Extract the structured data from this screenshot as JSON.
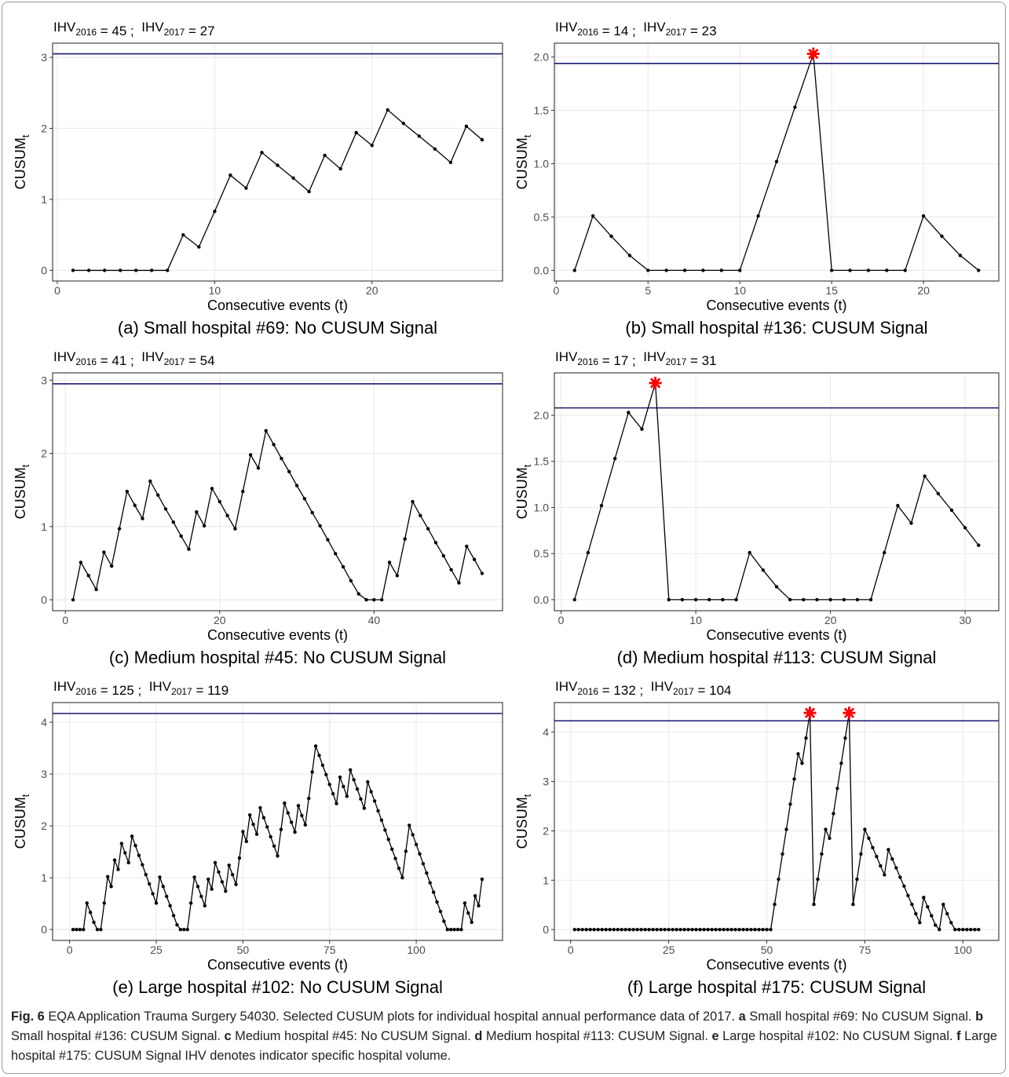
{
  "chart_data": [
    {
      "type": "line",
      "annotation": [
        {
          "label": "IHV",
          "sub": "2016",
          "text": " = 45 ;  "
        },
        {
          "label": "IHV",
          "sub": "2017",
          "text": " = 27"
        }
      ],
      "ylabel": {
        "text": "CUSUM",
        "sub": "t"
      },
      "xlabel": "Consecutive events (t)",
      "caption": "(a) Small hospital #69: No CUSUM Signal",
      "x": [
        1,
        2,
        3,
        4,
        5,
        6,
        7,
        8,
        9,
        10,
        11,
        12,
        13,
        14,
        15,
        16,
        17,
        18,
        19,
        20,
        21,
        22,
        23,
        24,
        25,
        26,
        27
      ],
      "values": [
        0,
        0,
        0,
        0,
        0,
        0,
        0,
        0.5,
        0.33,
        0.83,
        1.34,
        1.16,
        1.66,
        1.48,
        1.3,
        1.11,
        1.62,
        1.43,
        1.94,
        1.76,
        2.26,
        2.07,
        1.89,
        1.71,
        1.52,
        2.03,
        1.84
      ],
      "color": "#000000",
      "threshold": 3.05,
      "threshold_color": "#191970",
      "signal_x": [],
      "signal_color": "#ff0000",
      "xlim": [
        -0.3,
        28.3
      ],
      "xticks": [
        0,
        10,
        20
      ],
      "ylim": [
        -0.15,
        3.2
      ],
      "yticks": [
        0,
        1,
        2,
        3
      ],
      "grid": true
    },
    {
      "type": "line",
      "annotation": [
        {
          "label": "IHV",
          "sub": "2016",
          "text": " = 14 ;  "
        },
        {
          "label": "IHV",
          "sub": "2017",
          "text": " = 23"
        }
      ],
      "ylabel": {
        "text": "CUSUM",
        "sub": "t"
      },
      "xlabel": "Consecutive events (t)",
      "caption": "(b) Small hospital #136: CUSUM Signal",
      "x": [
        1,
        2,
        3,
        4,
        5,
        6,
        7,
        8,
        9,
        10,
        11,
        12,
        13,
        14,
        15,
        16,
        17,
        18,
        19,
        20,
        21,
        22,
        23
      ],
      "values": [
        0,
        0.51,
        0.32,
        0.14,
        0,
        0,
        0,
        0,
        0,
        0,
        0.51,
        1.02,
        1.53,
        2.03,
        0,
        0,
        0,
        0,
        0,
        0.51,
        0.32,
        0.14,
        0
      ],
      "color": "#000000",
      "threshold": 1.94,
      "threshold_color": "#191970",
      "signal_x": [
        14
      ],
      "signal_color": "#ff0000",
      "xlim": [
        -0.1,
        24.1
      ],
      "xticks": [
        0,
        5,
        10,
        15,
        20
      ],
      "ylim": [
        -0.1,
        2.13
      ],
      "yticks": [
        {
          "value": 0,
          "label": "0.0"
        },
        0.5,
        {
          "value": 1,
          "label": "1.0"
        },
        1.5,
        {
          "value": 2,
          "label": "2.0"
        }
      ],
      "grid": true
    },
    {
      "type": "line",
      "annotation": [
        {
          "label": "IHV",
          "sub": "2016",
          "text": " = 41 ;  "
        },
        {
          "label": "IHV",
          "sub": "2017",
          "text": " = 54"
        }
      ],
      "ylabel": {
        "text": "CUSUM",
        "sub": "t"
      },
      "xlabel": "Consecutive events (t)",
      "caption": "(c) Medium hospital #45: No CUSUM Signal",
      "x": [
        1,
        2,
        3,
        4,
        5,
        6,
        7,
        8,
        9,
        10,
        11,
        12,
        13,
        14,
        15,
        16,
        17,
        18,
        19,
        20,
        21,
        22,
        23,
        24,
        25,
        26,
        27,
        28,
        29,
        30,
        31,
        32,
        33,
        34,
        35,
        36,
        37,
        38,
        39,
        40,
        41,
        42,
        43,
        44,
        45,
        46,
        47,
        48,
        49,
        50,
        51,
        52,
        53,
        54
      ],
      "values": [
        0,
        0.51,
        0.33,
        0.14,
        0.65,
        0.46,
        0.97,
        1.48,
        1.29,
        1.11,
        1.62,
        1.43,
        1.24,
        1.06,
        0.87,
        0.69,
        1.2,
        1.01,
        1.52,
        1.34,
        1.15,
        0.97,
        1.48,
        1.98,
        1.8,
        2.31,
        2.12,
        1.93,
        1.75,
        1.56,
        1.38,
        1.19,
        1.01,
        0.82,
        0.63,
        0.45,
        0.26,
        0.08,
        0,
        0,
        0,
        0.51,
        0.33,
        0.83,
        1.34,
        1.15,
        0.97,
        0.78,
        0.6,
        0.41,
        0.23,
        0.73,
        0.55,
        0.36
      ],
      "color": "#000000",
      "threshold": 2.95,
      "threshold_color": "#191970",
      "signal_x": [],
      "signal_color": "#ff0000",
      "xlim": [
        -1.65,
        56.65
      ],
      "xticks": [
        0,
        20,
        40
      ],
      "ylim": [
        -0.15,
        3.1
      ],
      "yticks": [
        0,
        1,
        2,
        3
      ],
      "grid": true
    },
    {
      "type": "line",
      "annotation": [
        {
          "label": "IHV",
          "sub": "2016",
          "text": " = 17 ;  "
        },
        {
          "label": "IHV",
          "sub": "2017",
          "text": " = 31"
        }
      ],
      "ylabel": {
        "text": "CUSUM",
        "sub": "t"
      },
      "xlabel": "Consecutive events (t)",
      "caption": "(d) Medium hospital #113: CUSUM Signal",
      "x": [
        1,
        2,
        3,
        4,
        5,
        6,
        7,
        8,
        9,
        10,
        11,
        12,
        13,
        14,
        15,
        16,
        17,
        18,
        19,
        20,
        21,
        22,
        23,
        24,
        25,
        26,
        27,
        28,
        29,
        30,
        31
      ],
      "values": [
        0,
        0.51,
        1.02,
        1.53,
        2.03,
        1.85,
        2.35,
        0,
        0,
        0,
        0,
        0,
        0,
        0.51,
        0.32,
        0.14,
        0,
        0,
        0,
        0,
        0,
        0,
        0,
        0.51,
        1.02,
        0.83,
        1.34,
        1.15,
        0.97,
        0.78,
        0.59
      ],
      "color": "#000000",
      "threshold": 2.08,
      "threshold_color": "#191970",
      "signal_x": [
        7
      ],
      "signal_color": "#ff0000",
      "xlim": [
        -0.5,
        32.5
      ],
      "xticks": [
        0,
        10,
        20,
        30
      ],
      "ylim": [
        -0.12,
        2.46
      ],
      "yticks": [
        {
          "value": 0,
          "label": "0.0"
        },
        0.5,
        {
          "value": 1,
          "label": "1.0"
        },
        1.5,
        {
          "value": 2,
          "label": "2.0"
        }
      ],
      "grid": true
    },
    {
      "type": "line",
      "annotation": [
        {
          "label": "IHV",
          "sub": "2016",
          "text": " = 125 ;  "
        },
        {
          "label": "IHV",
          "sub": "2017",
          "text": " = 119"
        }
      ],
      "ylabel": {
        "text": "CUSUM",
        "sub": "t"
      },
      "xlabel": "Consecutive events (t)",
      "caption": "(e) Large hospital #102: No CUSUM Signal",
      "x": [
        1,
        2,
        3,
        4,
        5,
        6,
        7,
        8,
        9,
        10,
        11,
        12,
        13,
        14,
        15,
        16,
        17,
        18,
        19,
        20,
        21,
        22,
        23,
        24,
        25,
        26,
        27,
        28,
        29,
        30,
        31,
        32,
        33,
        34,
        35,
        36,
        37,
        38,
        39,
        40,
        41,
        42,
        43,
        44,
        45,
        46,
        47,
        48,
        49,
        50,
        51,
        52,
        53,
        54,
        55,
        56,
        57,
        58,
        59,
        60,
        61,
        62,
        63,
        64,
        65,
        66,
        67,
        68,
        69,
        70,
        71,
        72,
        73,
        74,
        75,
        76,
        77,
        78,
        79,
        80,
        81,
        82,
        83,
        84,
        85,
        86,
        87,
        88,
        89,
        90,
        91,
        92,
        93,
        94,
        95,
        96,
        97,
        98,
        99,
        100,
        101,
        102,
        103,
        104,
        105,
        106,
        107,
        108,
        109,
        110,
        111,
        112,
        113,
        114,
        115,
        116,
        117,
        118,
        119
      ],
      "values": [
        0,
        0,
        0,
        0,
        0.51,
        0.33,
        0.14,
        0,
        0,
        0.51,
        1.02,
        0.83,
        1.34,
        1.16,
        1.66,
        1.48,
        1.29,
        1.8,
        1.62,
        1.43,
        1.25,
        1.06,
        0.88,
        0.69,
        0.51,
        1.01,
        0.83,
        0.64,
        0.46,
        0.27,
        0.09,
        0,
        0,
        0,
        0.51,
        1.01,
        0.83,
        0.64,
        0.46,
        0.97,
        0.78,
        1.29,
        1.11,
        0.92,
        0.74,
        1.24,
        1.06,
        0.87,
        1.38,
        1.89,
        1.7,
        2.21,
        2.03,
        1.84,
        2.35,
        2.16,
        1.98,
        1.79,
        1.61,
        1.42,
        1.93,
        2.44,
        2.25,
        2.07,
        1.88,
        2.39,
        2.2,
        2.02,
        2.53,
        3.04,
        3.54,
        3.36,
        3.17,
        2.99,
        2.8,
        2.62,
        2.43,
        2.94,
        2.76,
        2.57,
        3.08,
        2.89,
        2.71,
        2.52,
        2.34,
        2.85,
        2.66,
        2.48,
        2.29,
        2.11,
        1.92,
        1.74,
        1.55,
        1.37,
        1.18,
        1,
        1.51,
        2.01,
        1.83,
        1.64,
        1.46,
        1.27,
        1.09,
        0.9,
        0.72,
        0.53,
        0.35,
        0.16,
        0,
        0,
        0,
        0,
        0,
        0.51,
        0.32,
        0.14,
        0.65,
        0.46,
        0.97
      ],
      "color": "#000000",
      "threshold": 4.17,
      "threshold_color": "#191970",
      "signal_x": [],
      "signal_color": "#ff0000",
      "xlim": [
        -4.9,
        124.9
      ],
      "xticks": [
        0,
        25,
        50,
        75,
        100
      ],
      "ylim": [
        -0.21,
        4.38
      ],
      "yticks": [
        0,
        1,
        2,
        3,
        4
      ],
      "grid": true
    },
    {
      "type": "line",
      "annotation": [
        {
          "label": "IHV",
          "sub": "2016",
          "text": " = 132 ;  "
        },
        {
          "label": "IHV",
          "sub": "2017",
          "text": " = 104"
        }
      ],
      "ylabel": {
        "text": "CUSUM",
        "sub": "t"
      },
      "xlabel": "Consecutive events (t)",
      "caption": "(f) Large hospital #175: CUSUM Signal",
      "x": [
        1,
        2,
        3,
        4,
        5,
        6,
        7,
        8,
        9,
        10,
        11,
        12,
        13,
        14,
        15,
        16,
        17,
        18,
        19,
        20,
        21,
        22,
        23,
        24,
        25,
        26,
        27,
        28,
        29,
        30,
        31,
        32,
        33,
        34,
        35,
        36,
        37,
        38,
        39,
        40,
        41,
        42,
        43,
        44,
        45,
        46,
        47,
        48,
        49,
        50,
        51,
        52,
        53,
        54,
        55,
        56,
        57,
        58,
        59,
        60,
        61,
        62,
        63,
        64,
        65,
        66,
        67,
        68,
        69,
        70,
        71,
        72,
        73,
        74,
        75,
        76,
        77,
        78,
        79,
        80,
        81,
        82,
        83,
        84,
        85,
        86,
        87,
        88,
        89,
        90,
        91,
        92,
        93,
        94,
        95,
        96,
        97,
        98,
        99,
        100,
        101,
        102,
        103,
        104
      ],
      "values": [
        0,
        0,
        0,
        0,
        0,
        0,
        0,
        0,
        0,
        0,
        0,
        0,
        0,
        0,
        0,
        0,
        0,
        0,
        0,
        0,
        0,
        0,
        0,
        0,
        0,
        0,
        0,
        0,
        0,
        0,
        0,
        0,
        0,
        0,
        0,
        0,
        0,
        0,
        0,
        0,
        0,
        0,
        0,
        0,
        0,
        0,
        0,
        0,
        0,
        0,
        0,
        0.51,
        1.02,
        1.53,
        2.03,
        2.54,
        3.05,
        3.56,
        3.37,
        3.88,
        4.39,
        0.51,
        1.02,
        1.53,
        2.03,
        1.85,
        2.35,
        2.86,
        3.37,
        3.88,
        4.39,
        0.51,
        1.02,
        1.53,
        2.03,
        1.85,
        1.66,
        1.48,
        1.29,
        1.11,
        1.62,
        1.43,
        1.25,
        1.06,
        0.88,
        0.69,
        0.51,
        0.32,
        0.14,
        0.65,
        0.46,
        0.28,
        0.09,
        0,
        0.51,
        0.32,
        0.14,
        0,
        0,
        0,
        0,
        0,
        0,
        0
      ],
      "color": "#000000",
      "threshold": 4.23,
      "threshold_color": "#191970",
      "signal_x": [
        61,
        71
      ],
      "signal_color": "#ff0000",
      "xlim": [
        -4.15,
        109.15
      ],
      "xticks": [
        0,
        25,
        50,
        75,
        100
      ],
      "ylim": [
        -0.22,
        4.6
      ],
      "yticks": [
        0,
        1,
        2,
        3,
        4
      ],
      "grid": true
    }
  ],
  "figure_caption": [
    {
      "text": "Fig. 6",
      "bold": true
    },
    {
      "text": " EQA Application Trauma Surgery 54030. Selected CUSUM plots for individual hospital annual performance data of 2017. ",
      "bold": false
    },
    {
      "text": "a",
      "bold": true
    },
    {
      "text": " Small hospital #69: No CUSUM Signal. ",
      "bold": false
    },
    {
      "text": "b",
      "bold": true
    },
    {
      "text": " Small hospital #136: CUSUM Signal. ",
      "bold": false
    },
    {
      "text": "c",
      "bold": true
    },
    {
      "text": " Medium hospital #45: No CUSUM Signal. ",
      "bold": false
    },
    {
      "text": "d",
      "bold": true
    },
    {
      "text": " Medium hospital #113: CUSUM Signal. ",
      "bold": false
    },
    {
      "text": "e",
      "bold": true
    },
    {
      "text": " Large hospital #102: No CUSUM Signal. ",
      "bold": false
    },
    {
      "text": "f",
      "bold": true
    },
    {
      "text": " Large hospital #175: CUSUM Signal IHV denotes indicator specific hospital volume.",
      "bold": false
    }
  ]
}
